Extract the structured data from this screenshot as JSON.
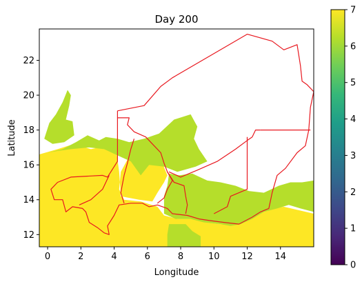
{
  "chart_data": {
    "type": "heatmap",
    "title": "Day 200",
    "xlabel": "Longitude",
    "ylabel": "Latitude",
    "xlim": [
      -0.5,
      16.0
    ],
    "ylim": [
      11.3,
      23.8
    ],
    "x_ticks": [
      0,
      2,
      4,
      6,
      8,
      10,
      12,
      14
    ],
    "y_ticks": [
      12,
      14,
      16,
      18,
      20,
      22
    ],
    "colorbar": {
      "min": 0,
      "max": 7,
      "ticks": [
        0,
        1,
        2,
        3,
        4,
        5,
        6,
        7
      ],
      "colormap": "viridis",
      "colors": [
        "#440154",
        "#482878",
        "#3e4989",
        "#31688e",
        "#26828e",
        "#1f9e89",
        "#35b779",
        "#6ece58",
        "#b5de2b",
        "#fde725"
      ]
    },
    "fields": [
      {
        "value": 7,
        "color": "#fde725",
        "polygon": [
          [
            -0.5,
            11.3
          ],
          [
            16.0,
            11.3
          ],
          [
            16.0,
            13.2
          ],
          [
            14.2,
            13.6
          ],
          [
            13.5,
            13.5
          ],
          [
            12.8,
            13.3
          ],
          [
            12.0,
            12.9
          ],
          [
            11.2,
            12.6
          ],
          [
            10.4,
            12.6
          ],
          [
            9.5,
            12.7
          ],
          [
            8.7,
            12.9
          ],
          [
            7.8,
            12.9
          ],
          [
            7.0,
            13.1
          ],
          [
            6.6,
            13.6
          ],
          [
            5.6,
            13.9
          ],
          [
            4.6,
            14.0
          ],
          [
            4.3,
            14.6
          ],
          [
            4.4,
            15.6
          ],
          [
            4.8,
            16.3
          ],
          [
            5.3,
            16.6
          ],
          [
            6.0,
            16.4
          ],
          [
            6.9,
            16.1
          ],
          [
            7.2,
            15.4
          ],
          [
            7.0,
            15.0
          ],
          [
            6.6,
            14.4
          ],
          [
            6.3,
            13.9
          ],
          [
            5.5,
            14.0
          ],
          [
            4.4,
            14.2
          ],
          [
            4.3,
            15.6
          ],
          [
            4.2,
            16.3
          ],
          [
            4.1,
            17.0
          ],
          [
            3.6,
            17.1
          ],
          [
            2.6,
            16.9
          ],
          [
            1.6,
            17.2
          ],
          [
            0.6,
            16.9
          ],
          [
            -0.5,
            16.6
          ]
        ]
      },
      {
        "value": 7,
        "color": "#fde725",
        "polygon": [
          [
            7.3,
            12.5
          ],
          [
            8.1,
            12.5
          ],
          [
            8.2,
            11.8
          ],
          [
            7.3,
            11.8
          ]
        ]
      },
      {
        "value": 6,
        "color": "#b5de2b",
        "polygon": [
          [
            7.2,
            11.3
          ],
          [
            9.2,
            11.3
          ],
          [
            9.2,
            11.9
          ],
          [
            8.7,
            12.2
          ],
          [
            8.3,
            12.6
          ],
          [
            7.3,
            12.6
          ],
          [
            7.2,
            12.0
          ]
        ]
      },
      {
        "value": 6,
        "color": "#b5de2b",
        "polygon": [
          [
            7.0,
            13.2
          ],
          [
            7.7,
            12.9
          ],
          [
            8.6,
            12.9
          ],
          [
            9.4,
            12.7
          ],
          [
            10.4,
            12.6
          ],
          [
            11.0,
            12.5
          ],
          [
            11.6,
            12.6
          ],
          [
            12.3,
            12.9
          ],
          [
            13.0,
            13.3
          ],
          [
            13.8,
            13.5
          ],
          [
            14.5,
            13.7
          ],
          [
            15.2,
            13.5
          ],
          [
            16.0,
            13.3
          ],
          [
            16.0,
            15.1
          ],
          [
            15.3,
            15.0
          ],
          [
            14.6,
            15.0
          ],
          [
            13.9,
            14.8
          ],
          [
            13.0,
            14.4
          ],
          [
            12.1,
            14.5
          ],
          [
            11.3,
            14.8
          ],
          [
            10.4,
            15.0
          ],
          [
            9.6,
            15.1
          ],
          [
            8.7,
            15.5
          ],
          [
            7.9,
            15.4
          ],
          [
            7.3,
            15.5
          ],
          [
            7.2,
            14.8
          ],
          [
            7.0,
            14.2
          ]
        ]
      },
      {
        "value": 6,
        "color": "#b5de2b",
        "polygon": [
          [
            0.0,
            16.7
          ],
          [
            0.9,
            16.9
          ],
          [
            1.7,
            17.3
          ],
          [
            2.4,
            17.7
          ],
          [
            3.1,
            17.4
          ],
          [
            3.5,
            17.6
          ],
          [
            4.2,
            17.5
          ],
          [
            4.9,
            17.3
          ],
          [
            5.8,
            17.5
          ],
          [
            6.7,
            17.8
          ],
          [
            7.6,
            18.6
          ],
          [
            8.6,
            18.9
          ],
          [
            9.0,
            18.2
          ],
          [
            8.8,
            17.5
          ],
          [
            9.1,
            16.9
          ],
          [
            9.6,
            16.2
          ],
          [
            8.9,
            15.9
          ],
          [
            7.8,
            15.6
          ],
          [
            7.0,
            15.9
          ],
          [
            6.1,
            16.0
          ],
          [
            5.6,
            15.4
          ],
          [
            5.0,
            16.2
          ],
          [
            4.3,
            16.5
          ],
          [
            3.4,
            16.9
          ],
          [
            2.5,
            17.0
          ],
          [
            1.4,
            16.9
          ],
          [
            0.6,
            16.8
          ]
        ]
      },
      {
        "value": 6,
        "color": "#b5de2b",
        "polygon": [
          [
            -0.2,
            17.5
          ],
          [
            0.1,
            18.4
          ],
          [
            0.5,
            18.9
          ],
          [
            0.9,
            19.6
          ],
          [
            1.2,
            20.3
          ],
          [
            1.4,
            20.0
          ],
          [
            1.3,
            19.4
          ],
          [
            1.1,
            18.6
          ],
          [
            1.5,
            18.5
          ],
          [
            1.6,
            17.7
          ],
          [
            1.0,
            17.3
          ],
          [
            0.3,
            17.2
          ]
        ]
      }
    ],
    "borders": [
      {
        "name": "niger-border",
        "points": [
          [
            4.2,
            19.1
          ],
          [
            5.8,
            19.4
          ],
          [
            6.8,
            20.5
          ],
          [
            7.5,
            21.0
          ],
          [
            12.0,
            23.5
          ],
          [
            13.5,
            23.1
          ],
          [
            14.2,
            22.6
          ],
          [
            15.0,
            22.9
          ],
          [
            15.2,
            21.7
          ],
          [
            15.3,
            20.8
          ],
          [
            15.6,
            20.6
          ],
          [
            16.0,
            20.2
          ],
          [
            15.8,
            19.3
          ],
          [
            15.7,
            18.0
          ],
          [
            15.5,
            17.1
          ],
          [
            15.0,
            16.7
          ],
          [
            14.3,
            15.8
          ],
          [
            13.8,
            15.4
          ],
          [
            13.5,
            14.4
          ],
          [
            13.3,
            13.5
          ],
          [
            12.8,
            13.3
          ],
          [
            12.3,
            13.0
          ],
          [
            11.5,
            12.6
          ],
          [
            10.6,
            12.7
          ],
          [
            9.8,
            12.8
          ],
          [
            9.1,
            12.9
          ],
          [
            8.4,
            13.1
          ],
          [
            7.5,
            13.2
          ],
          [
            7.2,
            13.5
          ],
          [
            6.6,
            13.7
          ],
          [
            6.1,
            13.6
          ],
          [
            5.7,
            13.8
          ],
          [
            5.0,
            13.8
          ],
          [
            4.3,
            13.7
          ],
          [
            4.0,
            13.1
          ],
          [
            3.6,
            12.5
          ],
          [
            3.7,
            12.0
          ],
          [
            3.4,
            12.1
          ],
          [
            3.0,
            12.4
          ],
          [
            2.5,
            12.7
          ],
          [
            2.3,
            13.3
          ],
          [
            2.1,
            13.5
          ],
          [
            1.5,
            13.6
          ],
          [
            1.1,
            13.3
          ],
          [
            0.9,
            14.0
          ],
          [
            0.4,
            14.0
          ],
          [
            0.2,
            14.6
          ],
          [
            0.6,
            15.0
          ],
          [
            1.4,
            15.3
          ],
          [
            3.3,
            15.4
          ],
          [
            3.6,
            15.3
          ],
          [
            4.2,
            16.2
          ],
          [
            4.2,
            19.1
          ]
        ]
      },
      {
        "name": "inner-boundary-a",
        "points": [
          [
            4.2,
            18.7
          ],
          [
            4.9,
            18.7
          ],
          [
            4.8,
            18.3
          ],
          [
            5.2,
            17.9
          ],
          [
            5.9,
            17.6
          ],
          [
            6.3,
            17.2
          ],
          [
            6.8,
            16.7
          ],
          [
            7.0,
            16.1
          ],
          [
            7.2,
            15.6
          ],
          [
            7.5,
            15.1
          ],
          [
            7.2,
            14.6
          ],
          [
            7.0,
            14.1
          ],
          [
            6.6,
            13.8
          ]
        ]
      },
      {
        "name": "inner-boundary-b",
        "points": [
          [
            4.6,
            13.8
          ],
          [
            4.4,
            14.4
          ],
          [
            4.6,
            15.4
          ],
          [
            4.8,
            16.1
          ],
          [
            5.0,
            16.9
          ],
          [
            5.2,
            17.5
          ]
        ]
      },
      {
        "name": "inner-boundary-c",
        "points": [
          [
            7.3,
            15.6
          ],
          [
            8.0,
            15.3
          ],
          [
            9.0,
            15.7
          ],
          [
            10.2,
            16.2
          ],
          [
            11.3,
            16.9
          ],
          [
            12.0,
            17.4
          ],
          [
            12.3,
            17.6
          ]
        ]
      },
      {
        "name": "inner-boundary-d",
        "points": [
          [
            12.8,
            18.0
          ],
          [
            15.8,
            18.0
          ]
        ]
      },
      {
        "name": "inner-boundary-e",
        "points": [
          [
            12.0,
            17.6
          ],
          [
            12.0,
            14.6
          ],
          [
            11.0,
            14.2
          ],
          [
            10.8,
            13.6
          ],
          [
            10.0,
            13.2
          ]
        ]
      },
      {
        "name": "inner-boundary-f",
        "points": [
          [
            7.2,
            15.6
          ],
          [
            7.6,
            15.0
          ],
          [
            8.2,
            14.8
          ],
          [
            8.3,
            14.2
          ],
          [
            8.4,
            13.7
          ],
          [
            8.3,
            13.2
          ]
        ]
      },
      {
        "name": "inner-boundary-g",
        "points": [
          [
            12.3,
            17.6
          ],
          [
            12.5,
            18.0
          ],
          [
            12.8,
            18.0
          ]
        ]
      },
      {
        "name": "inner-boundary-h",
        "points": [
          [
            3.7,
            15.4
          ],
          [
            3.3,
            14.6
          ],
          [
            2.6,
            14.0
          ],
          [
            1.9,
            13.7
          ]
        ]
      }
    ]
  }
}
